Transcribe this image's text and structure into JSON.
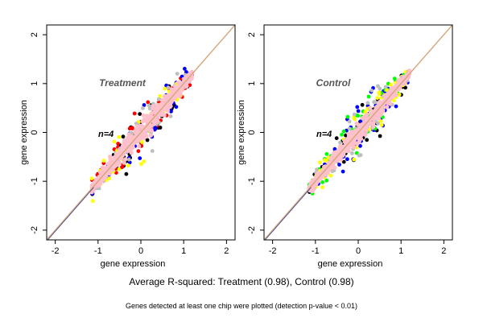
{
  "footer": {
    "summary": "Average R-squared: Treatment (0.98), Control (0.98)",
    "note": "Genes detected at least one chip were plotted (detection p-value < 0.01)"
  },
  "colors": {
    "point_main": "#ffc0cb",
    "replicates": [
      "#000000",
      "#ff0000",
      "#0000ff",
      "#ffff00",
      "#00ff00",
      "#bebebe"
    ],
    "diagonal": "#d2a679",
    "frame": "#000000"
  },
  "chart_data": [
    {
      "type": "scatter",
      "title": "Treatment",
      "annotation": "n=4",
      "xlabel": "gene expression",
      "ylabel": "gene expression",
      "xlim": [
        -2.2,
        2.2
      ],
      "ylim": [
        -2.2,
        2.2
      ],
      "xticks": [
        "-2",
        "-1",
        "0",
        "1",
        "2"
      ],
      "yticks": [
        "-2",
        "-1",
        "0",
        "1",
        "2"
      ],
      "reference_line": "y = x",
      "point_cloud": {
        "x_range": [
          -1.15,
          1.2
        ],
        "slope": 1.0,
        "core_spread": 0.12,
        "outlier_spread": 0.45
      },
      "series_colors": [
        "#000000",
        "#ff0000",
        "#0000ff",
        "#ffff00",
        "#bebebe",
        "#ffc0cb"
      ]
    },
    {
      "type": "scatter",
      "title": "Control",
      "annotation": "n=4",
      "xlabel": "gene expression",
      "ylabel": "gene expression",
      "xlim": [
        -2.2,
        2.2
      ],
      "ylim": [
        -2.2,
        2.2
      ],
      "xticks": [
        "-2",
        "-1",
        "0",
        "1",
        "2"
      ],
      "yticks": [
        "-2",
        "-1",
        "0",
        "1",
        "2"
      ],
      "reference_line": "y = x",
      "point_cloud": {
        "x_range": [
          -1.15,
          1.2
        ],
        "slope": 1.0,
        "core_spread": 0.1,
        "outlier_spread": 0.5
      },
      "series_colors": [
        "#000000",
        "#0000ff",
        "#00ff00",
        "#ffff00",
        "#bebebe",
        "#ffc0cb"
      ]
    }
  ]
}
